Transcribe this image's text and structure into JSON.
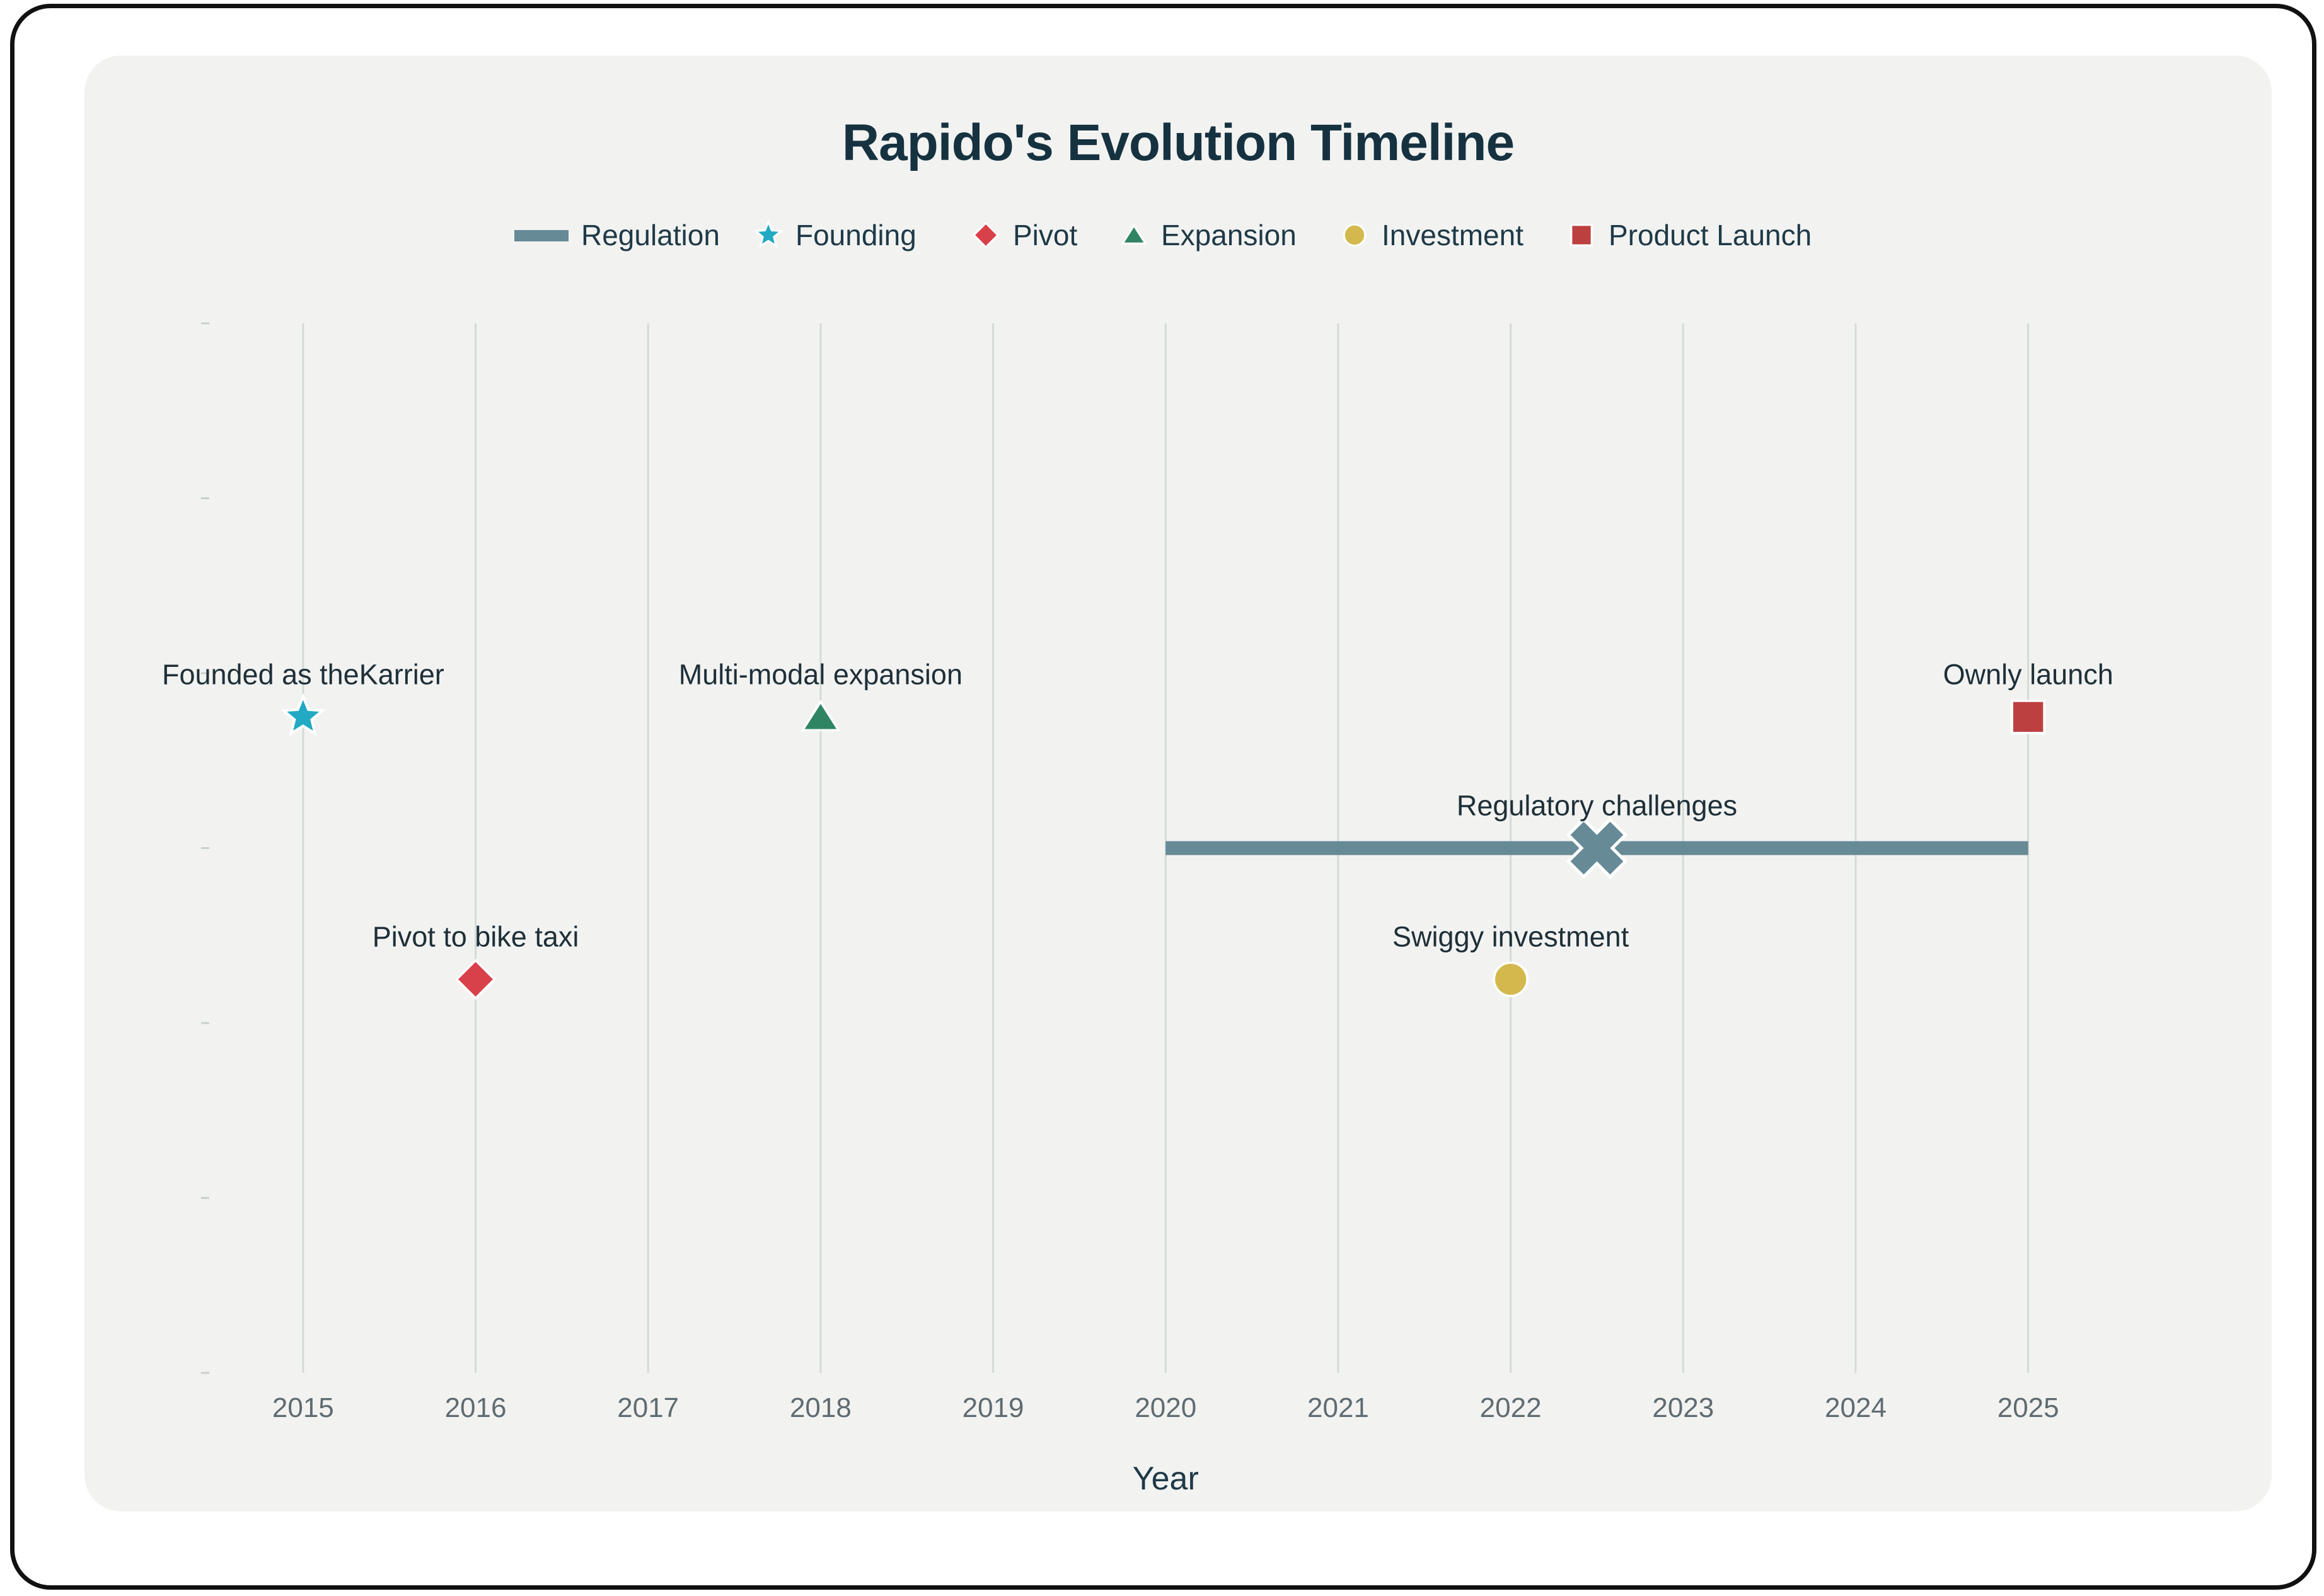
{
  "chart_data": {
    "type": "scatter",
    "title": "Rapido's Evolution Timeline",
    "xlabel": "Year",
    "ylabel": "",
    "xlim": [
      2014.5,
      2025.9
    ],
    "ylim": [
      0,
      6
    ],
    "x_ticks": [
      2015,
      2016,
      2017,
      2018,
      2019,
      2020,
      2021,
      2022,
      2023,
      2024,
      2025
    ],
    "grid": "vertical",
    "legend_position": "top-center",
    "legend": [
      {
        "name": "Regulation",
        "symbol": "line",
        "color": "#668a96"
      },
      {
        "name": "Founding",
        "symbol": "star",
        "color": "#22a9c4"
      },
      {
        "name": "Pivot",
        "symbol": "diamond",
        "color": "#d8404a"
      },
      {
        "name": "Expansion",
        "symbol": "triangle",
        "color": "#2f8463"
      },
      {
        "name": "Investment",
        "symbol": "circle",
        "color": "#d3b94d"
      },
      {
        "name": "Product Launch",
        "symbol": "square",
        "color": "#bd4040"
      }
    ],
    "events": [
      {
        "label": "Founded as theKarrier",
        "x": 2015,
        "y": 3.75,
        "category": "Founding",
        "symbol": "star",
        "color": "#22a9c4"
      },
      {
        "label": "Pivot to bike taxi",
        "x": 2016,
        "y": 2.25,
        "category": "Pivot",
        "symbol": "diamond",
        "color": "#d8404a"
      },
      {
        "label": "Multi-modal expansion",
        "x": 2018,
        "y": 3.75,
        "category": "Expansion",
        "symbol": "triangle",
        "color": "#2f8463"
      },
      {
        "label": "Swiggy investment",
        "x": 2022,
        "y": 2.25,
        "category": "Investment",
        "symbol": "circle",
        "color": "#d3b94d"
      },
      {
        "label": "Ownly launch",
        "x": 2025,
        "y": 3.75,
        "category": "Product Launch",
        "symbol": "square",
        "color": "#bd4040"
      }
    ],
    "ranges": [
      {
        "label": "Regulatory challenges",
        "x_start": 2020,
        "x_end": 2025,
        "x_marker": 2022.5,
        "y": 3,
        "category": "Regulation",
        "color": "#668a96"
      }
    ]
  }
}
